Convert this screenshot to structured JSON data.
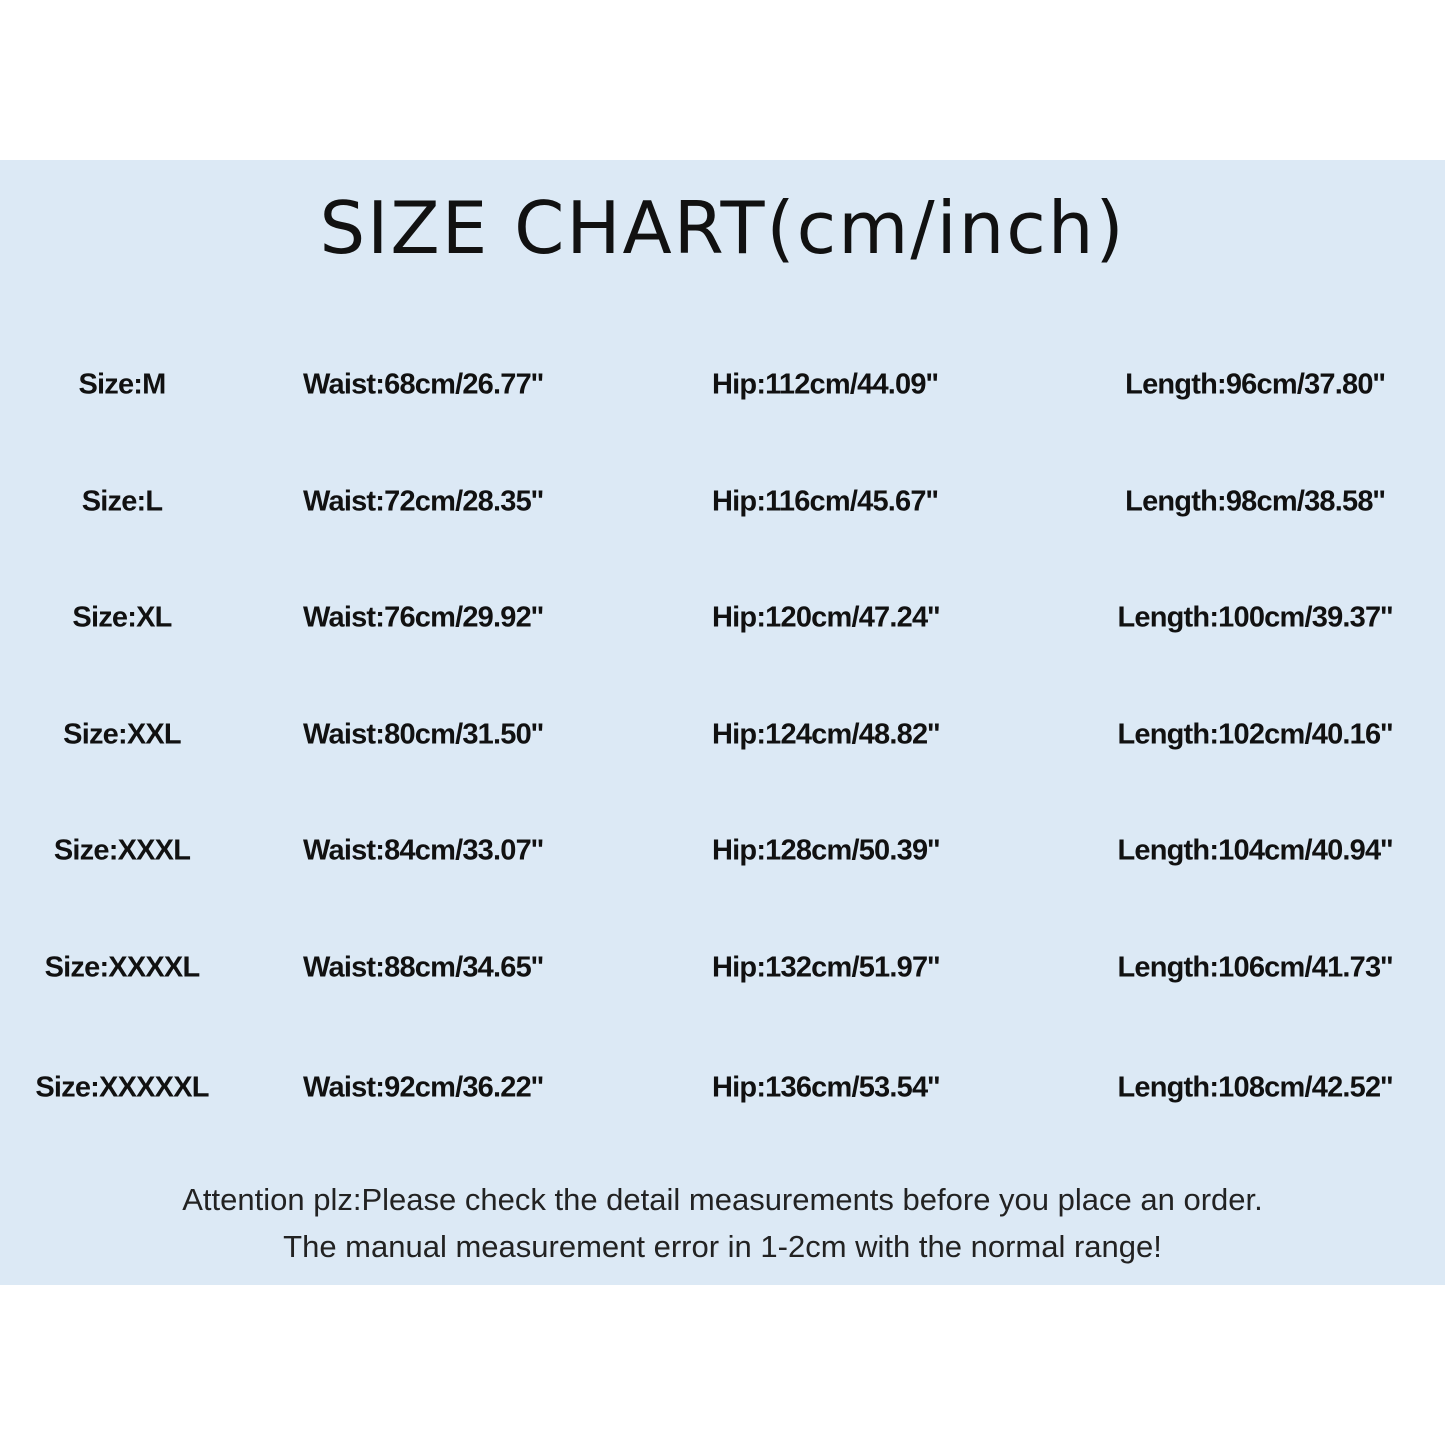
{
  "title": "SIZE CHART(cm/inch)",
  "background_color": "#dce9f5",
  "rows": [
    {
      "size": "Size:M",
      "waist": "Waist:68cm/26.77''",
      "hip": "Hip:112cm/44.09''",
      "length": "Length:96cm/37.80''"
    },
    {
      "size": "Size:L",
      "waist": "Waist:72cm/28.35''",
      "hip": "Hip:116cm/45.67''",
      "length": "Length:98cm/38.58''"
    },
    {
      "size": "Size:XL",
      "waist": "Waist:76cm/29.92''",
      "hip": "Hip:120cm/47.24''",
      "length": "Length:100cm/39.37''"
    },
    {
      "size": "Size:XXL",
      "waist": "Waist:80cm/31.50''",
      "hip": "Hip:124cm/48.82''",
      "length": "Length:102cm/40.16''"
    },
    {
      "size": "Size:XXXL",
      "waist": "Waist:84cm/33.07''",
      "hip": "Hip:128cm/50.39''",
      "length": "Length:104cm/40.94''"
    },
    {
      "size": "Size:XXXXL",
      "waist": "Waist:88cm/34.65''",
      "hip": "Hip:132cm/51.97''",
      "length": "Length:106cm/41.73''"
    },
    {
      "size": "Size:XXXXXL",
      "waist": "Waist:92cm/36.22''",
      "hip": "Hip:136cm/53.54''",
      "length": "Length:108cm/42.52''"
    }
  ],
  "notes": {
    "line1": "Attention plz:Please check the detail measurements before you place an order.",
    "line2": "The manual measurement error in 1-2cm with the normal range!"
  }
}
